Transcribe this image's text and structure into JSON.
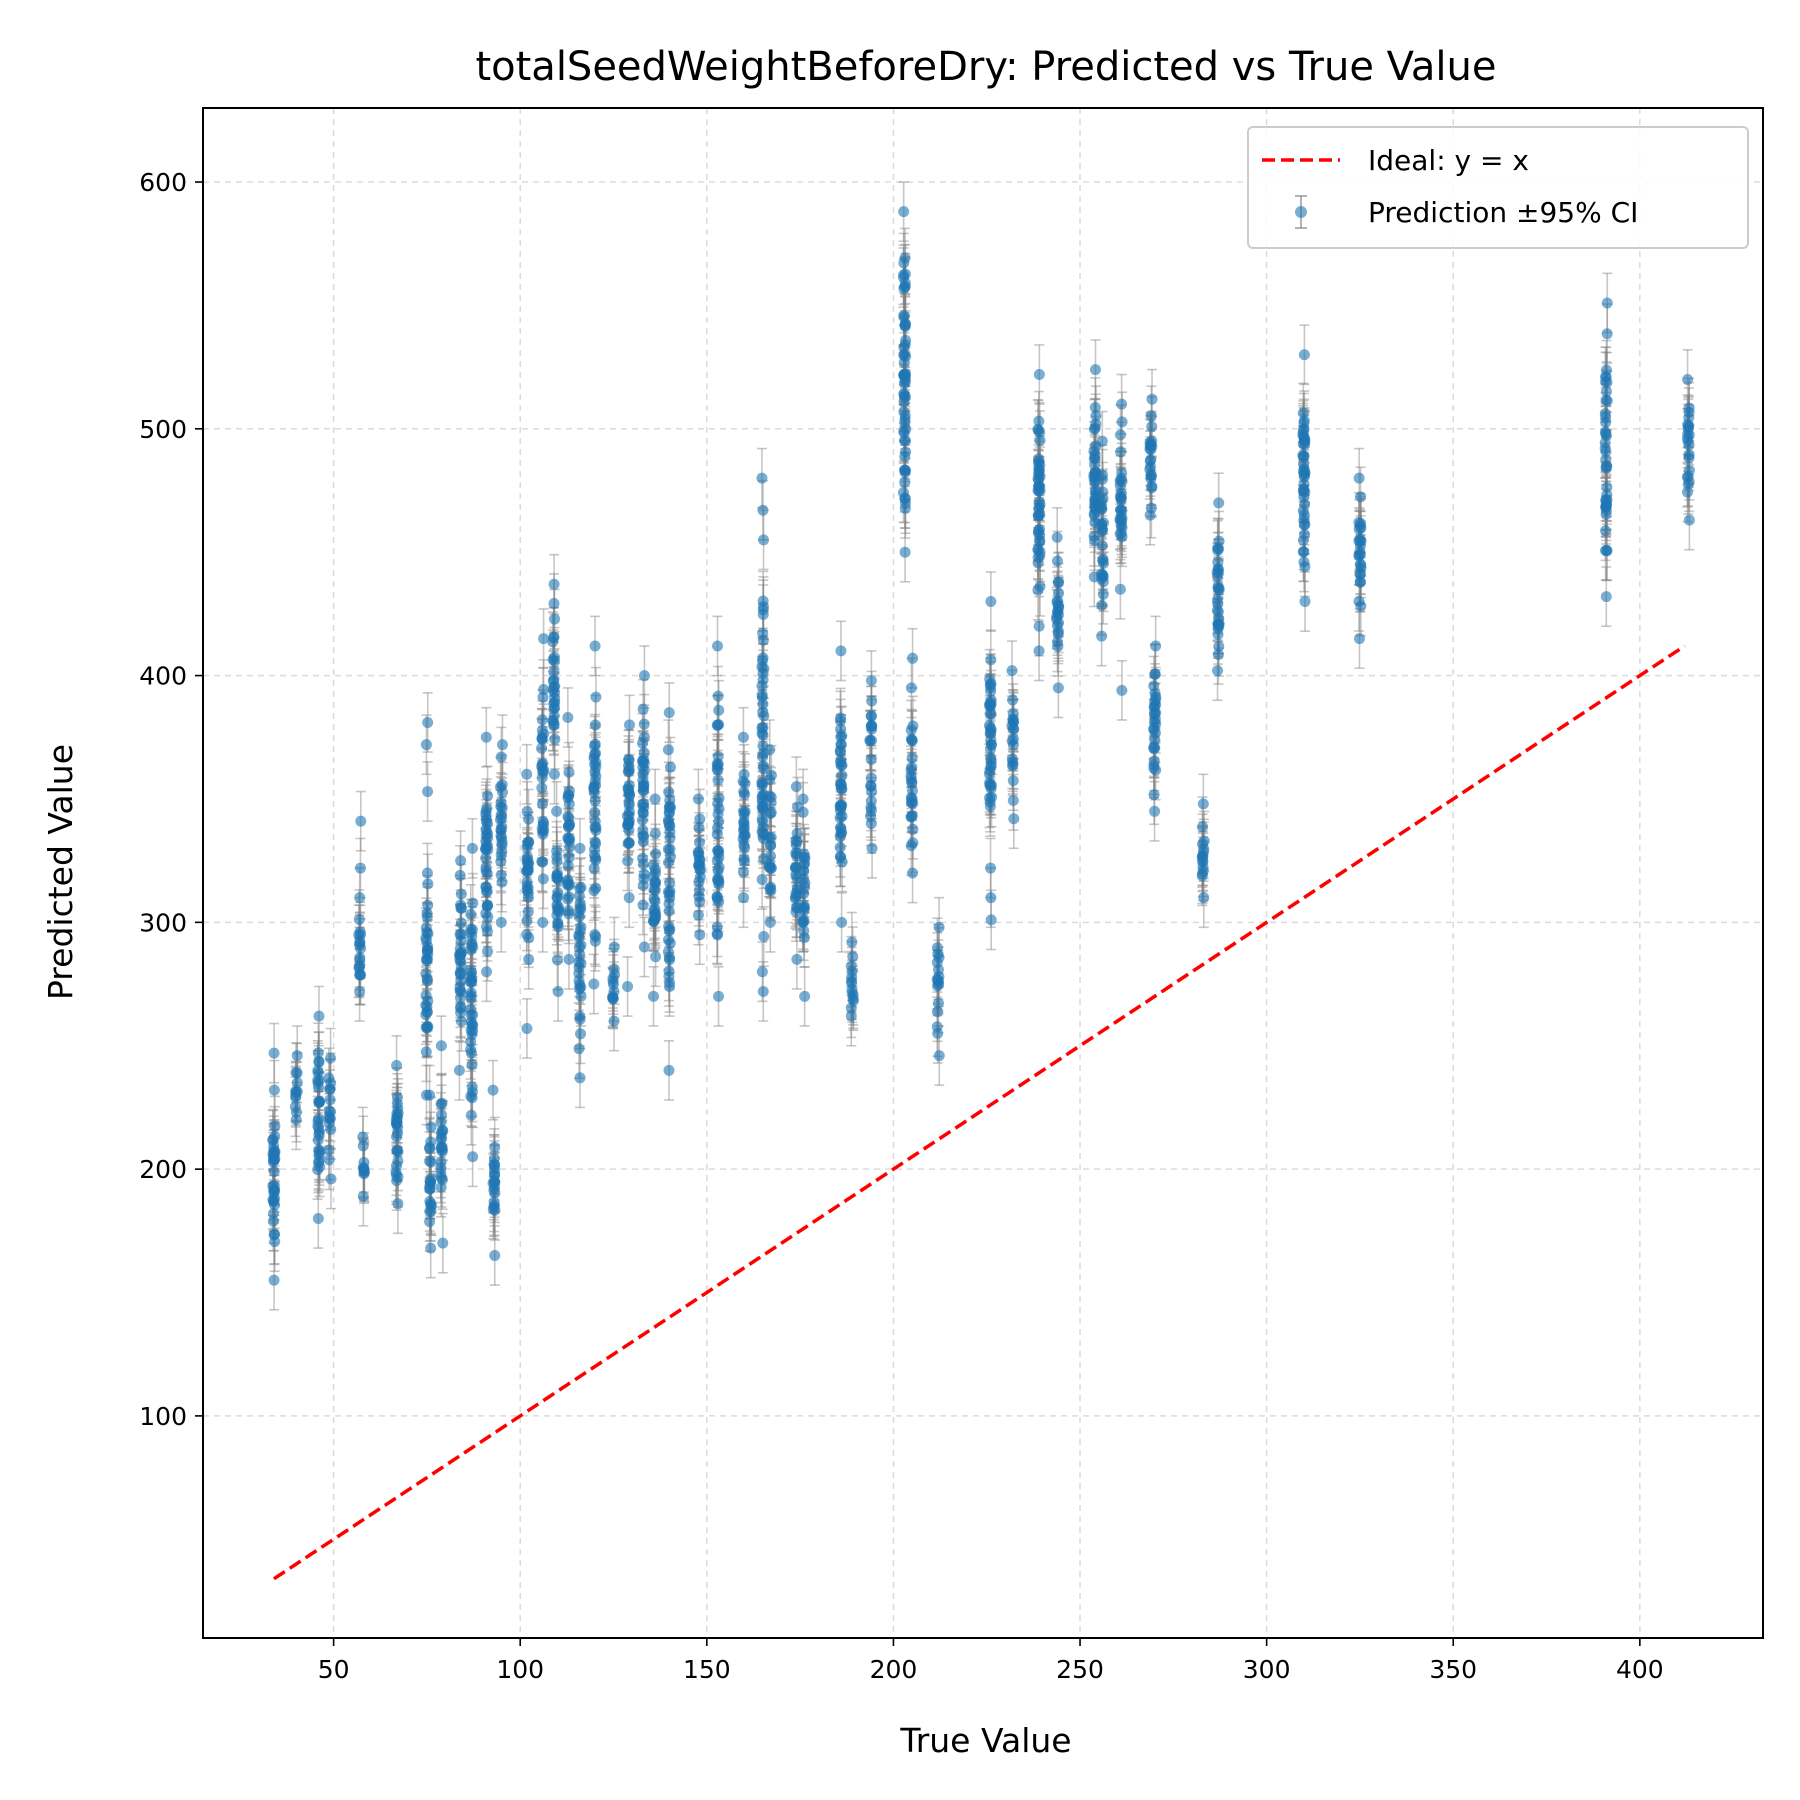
{
  "chart_data": {
    "type": "scatter",
    "title": "totalSeedWeightBeforeDry: Predicted vs True Value",
    "xlabel": "True Value",
    "ylabel": "Predicted Value",
    "xlim": [
      15,
      433
    ],
    "ylim": [
      10,
      630
    ],
    "xticks": [
      50,
      100,
      150,
      200,
      250,
      300,
      350,
      400
    ],
    "xtick_labels": [
      "50",
      "100",
      "150",
      "200",
      "250",
      "300",
      "350",
      "400"
    ],
    "yticks": [
      100,
      200,
      300,
      400,
      500,
      600
    ],
    "ytick_labels": [
      "100",
      "200",
      "300",
      "400",
      "500",
      "600"
    ],
    "grid": true,
    "legend_position": "top-right",
    "ideal_line": {
      "name": "Ideal: y = x",
      "color": "#ff0000",
      "style": "dashed",
      "x": [
        34,
        412
      ],
      "y": [
        34,
        412
      ]
    },
    "scatter_series": {
      "name": "Prediction ±95% CI",
      "point_color": "#1f77b4",
      "errorbar_color": "#808080",
      "ci_halfwidth": 12,
      "groups": [
        {
          "x": 34,
          "y_min": 155,
          "y_max": 232,
          "n": 34,
          "outliers": [
            247
          ]
        },
        {
          "x": 40,
          "y_min": 220,
          "y_max": 246,
          "n": 12,
          "outliers": []
        },
        {
          "x": 46,
          "y_min": 180,
          "y_max": 262,
          "n": 30,
          "outliers": []
        },
        {
          "x": 49,
          "y_min": 196,
          "y_max": 245,
          "n": 16,
          "outliers": []
        },
        {
          "x": 57,
          "y_min": 272,
          "y_max": 310,
          "n": 18,
          "outliers": [
            322,
            341
          ]
        },
        {
          "x": 58,
          "y_min": 189,
          "y_max": 213,
          "n": 10,
          "outliers": []
        },
        {
          "x": 67,
          "y_min": 186,
          "y_max": 242,
          "n": 26,
          "outliers": []
        },
        {
          "x": 75,
          "y_min": 230,
          "y_max": 320,
          "n": 34,
          "outliers": [
            353,
            372,
            381
          ]
        },
        {
          "x": 76,
          "y_min": 168,
          "y_max": 230,
          "n": 22,
          "outliers": []
        },
        {
          "x": 79,
          "y_min": 170,
          "y_max": 250,
          "n": 22,
          "outliers": []
        },
        {
          "x": 84,
          "y_min": 240,
          "y_max": 325,
          "n": 32,
          "outliers": []
        },
        {
          "x": 87,
          "y_min": 205,
          "y_max": 330,
          "n": 40,
          "outliers": []
        },
        {
          "x": 91,
          "y_min": 280,
          "y_max": 375,
          "n": 36,
          "outliers": []
        },
        {
          "x": 93,
          "y_min": 165,
          "y_max": 232,
          "n": 22,
          "outliers": []
        },
        {
          "x": 95,
          "y_min": 300,
          "y_max": 372,
          "n": 24,
          "outliers": []
        },
        {
          "x": 102,
          "y_min": 285,
          "y_max": 360,
          "n": 28,
          "outliers": [
            257
          ]
        },
        {
          "x": 106,
          "y_min": 300,
          "y_max": 415,
          "n": 30,
          "outliers": []
        },
        {
          "x": 109,
          "y_min": 360,
          "y_max": 437,
          "n": 28,
          "outliers": []
        },
        {
          "x": 110,
          "y_min": 272,
          "y_max": 345,
          "n": 24,
          "outliers": []
        },
        {
          "x": 113,
          "y_min": 285,
          "y_max": 383,
          "n": 30,
          "outliers": []
        },
        {
          "x": 116,
          "y_min": 237,
          "y_max": 330,
          "n": 30,
          "outliers": []
        },
        {
          "x": 120,
          "y_min": 275,
          "y_max": 412,
          "n": 38,
          "outliers": []
        },
        {
          "x": 125,
          "y_min": 260,
          "y_max": 290,
          "n": 12,
          "outliers": []
        },
        {
          "x": 129,
          "y_min": 310,
          "y_max": 380,
          "n": 30,
          "outliers": [
            274
          ]
        },
        {
          "x": 133,
          "y_min": 290,
          "y_max": 400,
          "n": 36,
          "outliers": []
        },
        {
          "x": 136,
          "y_min": 270,
          "y_max": 350,
          "n": 26,
          "outliers": []
        },
        {
          "x": 140,
          "y_min": 240,
          "y_max": 385,
          "n": 40,
          "outliers": []
        },
        {
          "x": 148,
          "y_min": 295,
          "y_max": 350,
          "n": 22,
          "outliers": []
        },
        {
          "x": 153,
          "y_min": 270,
          "y_max": 412,
          "n": 40,
          "outliers": []
        },
        {
          "x": 160,
          "y_min": 310,
          "y_max": 375,
          "n": 24,
          "outliers": []
        },
        {
          "x": 165,
          "y_min": 280,
          "y_max": 455,
          "n": 50,
          "outliers": [
            467,
            480,
            272
          ]
        },
        {
          "x": 167,
          "y_min": 300,
          "y_max": 370,
          "n": 22,
          "outliers": []
        },
        {
          "x": 174,
          "y_min": 285,
          "y_max": 355,
          "n": 24,
          "outliers": []
        },
        {
          "x": 176,
          "y_min": 270,
          "y_max": 350,
          "n": 24,
          "outliers": []
        },
        {
          "x": 186,
          "y_min": 300,
          "y_max": 410,
          "n": 38,
          "outliers": []
        },
        {
          "x": 189,
          "y_min": 262,
          "y_max": 292,
          "n": 14,
          "outliers": []
        },
        {
          "x": 194,
          "y_min": 330,
          "y_max": 398,
          "n": 22,
          "outliers": []
        },
        {
          "x": 203,
          "y_min": 450,
          "y_max": 588,
          "n": 60,
          "outliers": []
        },
        {
          "x": 205,
          "y_min": 320,
          "y_max": 395,
          "n": 26,
          "outliers": [
            407
          ]
        },
        {
          "x": 212,
          "y_min": 255,
          "y_max": 298,
          "n": 16,
          "outliers": [
            246
          ]
        },
        {
          "x": 226,
          "y_min": 322,
          "y_max": 430,
          "n": 40,
          "outliers": [
            301,
            310
          ]
        },
        {
          "x": 232,
          "y_min": 342,
          "y_max": 402,
          "n": 20,
          "outliers": []
        },
        {
          "x": 239,
          "y_min": 420,
          "y_max": 522,
          "n": 46,
          "outliers": [
            410
          ]
        },
        {
          "x": 244,
          "y_min": 395,
          "y_max": 456,
          "n": 22,
          "outliers": []
        },
        {
          "x": 254,
          "y_min": 440,
          "y_max": 524,
          "n": 36,
          "outliers": []
        },
        {
          "x": 256,
          "y_min": 416,
          "y_max": 495,
          "n": 28,
          "outliers": []
        },
        {
          "x": 261,
          "y_min": 435,
          "y_max": 510,
          "n": 28,
          "outliers": [
            394
          ]
        },
        {
          "x": 269,
          "y_min": 465,
          "y_max": 512,
          "n": 22,
          "outliers": []
        },
        {
          "x": 270,
          "y_min": 345,
          "y_max": 412,
          "n": 30,
          "outliers": []
        },
        {
          "x": 283,
          "y_min": 310,
          "y_max": 348,
          "n": 16,
          "outliers": []
        },
        {
          "x": 287,
          "y_min": 402,
          "y_max": 470,
          "n": 30,
          "outliers": []
        },
        {
          "x": 310,
          "y_min": 430,
          "y_max": 530,
          "n": 44,
          "outliers": []
        },
        {
          "x": 325,
          "y_min": 415,
          "y_max": 480,
          "n": 26,
          "outliers": []
        },
        {
          "x": 391,
          "y_min": 432,
          "y_max": 551,
          "n": 40,
          "outliers": []
        },
        {
          "x": 413,
          "y_min": 463,
          "y_max": 520,
          "n": 22,
          "outliers": []
        }
      ]
    }
  }
}
